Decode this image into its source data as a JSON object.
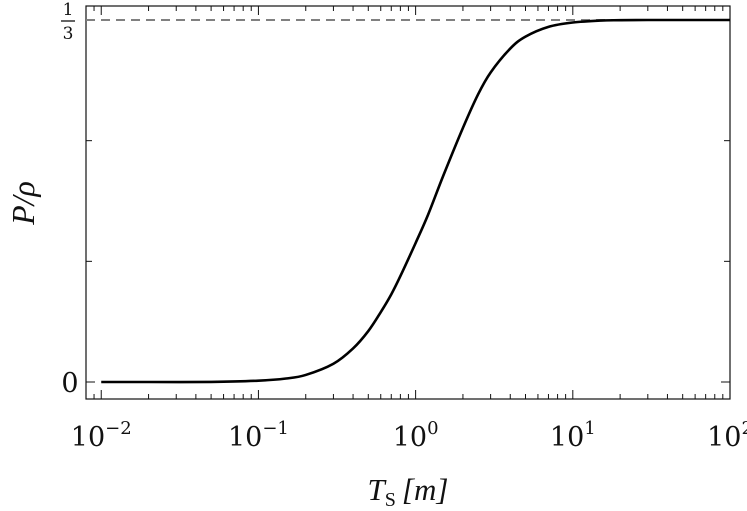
{
  "chart_data": {
    "type": "line",
    "xscale": "log",
    "xlim": [
      0.008,
      100
    ],
    "ylim": [
      -0.025,
      0.3333
    ],
    "xlabel": {
      "main": "T",
      "sub": "S",
      "unit": "[m]"
    },
    "ylabel": "P/ρ",
    "x_ticks": [
      {
        "value": 0.01,
        "base": "10",
        "exp": "−2"
      },
      {
        "value": 0.1,
        "base": "10",
        "exp": "−1"
      },
      {
        "value": 1,
        "base": "10",
        "exp": "0"
      },
      {
        "value": 10,
        "base": "10",
        "exp": "1"
      },
      {
        "value": 100,
        "base": "10",
        "exp": "2"
      }
    ],
    "y_ticks": [
      {
        "value": 0,
        "label": "0"
      },
      {
        "value": 0.3333,
        "num": "1",
        "den": "3"
      }
    ],
    "reference_line": {
      "y": 0.3333,
      "style": "dashed",
      "color": "#808080"
    },
    "series": [
      {
        "color": "#000000",
        "x": [
          0.01,
          0.02,
          0.05,
          0.1,
          0.15,
          0.2,
          0.3,
          0.4,
          0.5,
          0.6,
          0.7,
          0.8,
          1.0,
          1.2,
          1.5,
          2.0,
          2.5,
          3.0,
          4.0,
          5.0,
          7.0,
          10.0,
          15.0,
          20.0,
          30.0,
          50.0,
          100.0
        ],
        "y": [
          0.0,
          0.0,
          0.0001,
          0.0012,
          0.0032,
          0.0065,
          0.0168,
          0.0309,
          0.0469,
          0.0643,
          0.0807,
          0.0975,
          0.128,
          0.154,
          0.19,
          0.234,
          0.265,
          0.285,
          0.307,
          0.318,
          0.327,
          0.331,
          0.3328,
          0.3331,
          0.3333,
          0.3333,
          0.3333
        ]
      }
    ]
  }
}
